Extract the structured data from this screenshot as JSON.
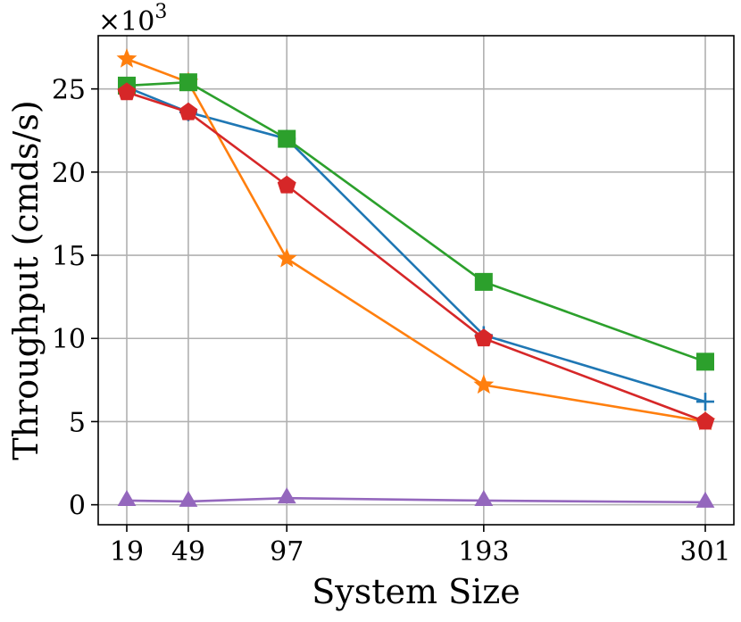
{
  "chart_data": {
    "type": "line",
    "xlabel": "System Size",
    "ylabel": "Throughput (cmds/s)",
    "y_scale_label": "×10",
    "y_scale_exp": "3",
    "x": [
      19,
      49,
      97,
      193,
      301
    ],
    "x_tick_labels": [
      "19",
      "49",
      "97",
      "193",
      "301"
    ],
    "y_ticks": [
      0,
      5,
      10,
      15,
      20,
      25
    ],
    "y_tick_labels": [
      "0",
      "5",
      "10",
      "15",
      "20",
      "25"
    ],
    "ylim": [
      -1.2,
      28.2
    ],
    "grid": true,
    "series": [
      {
        "name": "blue-plus",
        "color": "#1f77b4",
        "marker": "plus",
        "values": [
          25.1,
          23.6,
          22.0,
          10.2,
          6.2
        ]
      },
      {
        "name": "orange-star",
        "color": "#ff7f0e",
        "marker": "star",
        "values": [
          26.8,
          25.4,
          14.8,
          7.2,
          5.0
        ]
      },
      {
        "name": "green-square",
        "color": "#2ca02c",
        "marker": "square",
        "values": [
          25.2,
          25.4,
          22.0,
          13.4,
          8.6
        ]
      },
      {
        "name": "red-pentagon",
        "color": "#d62728",
        "marker": "pentagon",
        "values": [
          24.8,
          23.6,
          19.2,
          10.0,
          5.0
        ]
      },
      {
        "name": "purple-triangle",
        "color": "#9467bd",
        "marker": "triangle",
        "values": [
          0.25,
          0.2,
          0.4,
          0.25,
          0.15
        ]
      }
    ]
  }
}
